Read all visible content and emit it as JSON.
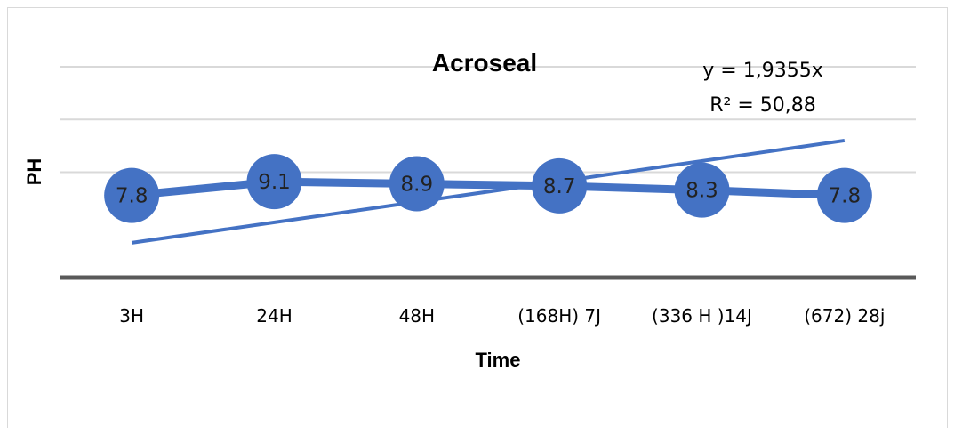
{
  "chart_data": {
    "type": "line",
    "title": "Acroseal",
    "xlabel": "Time",
    "ylabel": "PH",
    "categories": [
      "3H",
      "24H",
      "48H",
      "(168H) 7J",
      "(336 H )14J",
      "(672) 28j"
    ],
    "series": [
      {
        "values": [
          7.8,
          9.1,
          8.9,
          8.7,
          8.3,
          7.8
        ],
        "color": "#4472C4"
      }
    ],
    "trendline": {
      "type": "linear",
      "equation": "y = 1,9355x",
      "r_squared": "R² = 50,88",
      "values": [
        3.3,
        5.2,
        7.2,
        9.1,
        11.1,
        13.0
      ],
      "color": "#4472C4"
    },
    "ylim": [
      0,
      20
    ],
    "y_gridlines": [
      10,
      15
    ],
    "grid": true,
    "legend": "none",
    "data_labels": true
  }
}
